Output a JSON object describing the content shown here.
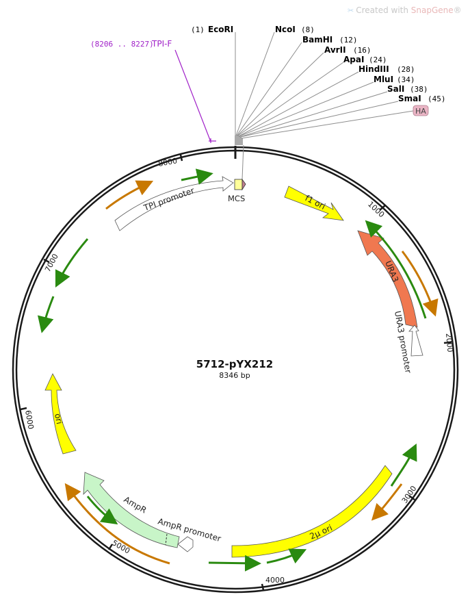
{
  "watermark": {
    "prefix": "Created with ",
    "brand": "SnapGene",
    "suffix": "®"
  },
  "plasmid": {
    "name": "5712-pYX212",
    "size_label": "8346 bp",
    "length_bp": 8346
  },
  "tick_labels": [
    "1000",
    "2000",
    "3000",
    "4000",
    "5000",
    "6000",
    "7000",
    "8000"
  ],
  "sites": [
    {
      "name": "EcoRI",
      "pos": "(1)",
      "side": "left"
    },
    {
      "name": "NcoI",
      "pos": "(8)",
      "side": "right"
    },
    {
      "name": "BamHI",
      "pos": "(12)",
      "side": "right"
    },
    {
      "name": "AvrII",
      "pos": "(16)",
      "side": "right"
    },
    {
      "name": "ApaI",
      "pos": "(24)",
      "side": "right"
    },
    {
      "name": "HindIII",
      "pos": "(28)",
      "side": "right"
    },
    {
      "name": "MluI",
      "pos": "(34)",
      "side": "right"
    },
    {
      "name": "SalI",
      "pos": "(38)",
      "side": "right"
    },
    {
      "name": "SmaI",
      "pos": "(45)",
      "side": "right"
    }
  ],
  "primer": {
    "range": "(8206 .. 8227)",
    "name": "TPI-F"
  },
  "features": {
    "ha": "HA",
    "mcs": "MCS",
    "f1_ori": "f1 ori",
    "ura3": "URA3",
    "ura3_promoter": "URA3 promoter",
    "two_mu_ori": "2μ ori",
    "ampr": "AmpR",
    "ampr_promoter": "AmpR promoter",
    "ori": "ori",
    "tpi_promoter": "TPI promoter"
  },
  "colors": {
    "backbone": "#1a1a1a",
    "primer": "#a020c8",
    "yellow_feature": "#ffff00",
    "ura3": "#f07850",
    "ampr": "#c8f5c8",
    "promoter": "#ffffff",
    "orf_green": "#2a8a10",
    "orf_orange": "#c87800",
    "ha_tag": "#eab5c5",
    "mcs_box": "#ffff99"
  }
}
